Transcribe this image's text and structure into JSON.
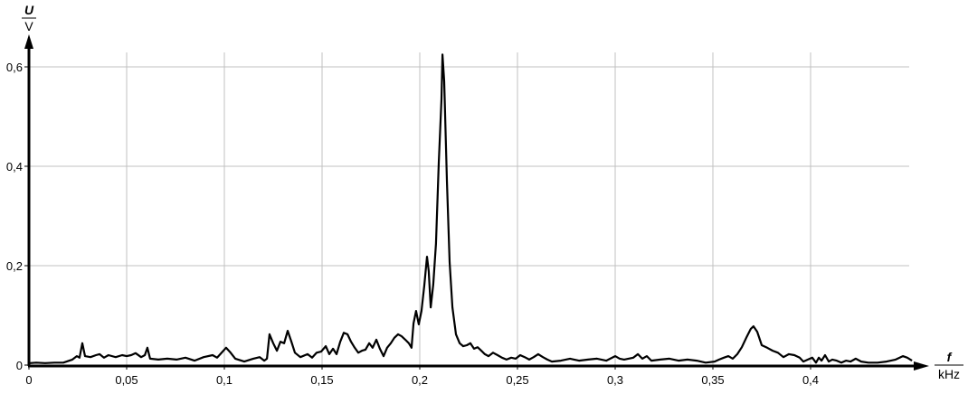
{
  "chart_data": {
    "type": "line",
    "title": "",
    "ylabel": {
      "symbol": "U",
      "unit": "V"
    },
    "xlabel": {
      "symbol": "f",
      "unit": "kHz"
    },
    "xlim": [
      0,
      0.45
    ],
    "ylim": [
      0,
      0.63
    ],
    "grid": true,
    "x_ticks": [
      0,
      0.05,
      0.1,
      0.15,
      0.2,
      0.25,
      0.3,
      0.35,
      0.4
    ],
    "x_tick_labels": [
      "0",
      "0,05",
      "0,1",
      "0,15",
      "0,2",
      "0,25",
      "0,3",
      "0,35",
      "0,4"
    ],
    "y_ticks": [
      0,
      0.2,
      0.4,
      0.6
    ],
    "y_tick_labels": [
      "0",
      "0,2",
      "0,4",
      "0,6"
    ],
    "colors": {
      "line": "#000000",
      "grid": "#c0c0c0",
      "axis": "#000000"
    },
    "series": [
      {
        "x": [
          0.0005,
          0.0037,
          0.0083,
          0.013,
          0.0176,
          0.0222,
          0.0245,
          0.0259,
          0.0273,
          0.0287,
          0.0315,
          0.0343,
          0.0361,
          0.0384,
          0.0407,
          0.0444,
          0.0477,
          0.05,
          0.0523,
          0.0546,
          0.0574,
          0.0593,
          0.0606,
          0.062,
          0.0662,
          0.0708,
          0.0755,
          0.0801,
          0.0847,
          0.0894,
          0.094,
          0.0963,
          0.0986,
          0.1009,
          0.1032,
          0.1056,
          0.1102,
          0.1148,
          0.1181,
          0.1204,
          0.1218,
          0.1231,
          0.125,
          0.1269,
          0.1287,
          0.1306,
          0.1324,
          0.1343,
          0.1361,
          0.1389,
          0.1426,
          0.1449,
          0.1472,
          0.1495,
          0.1519,
          0.1537,
          0.1556,
          0.1574,
          0.1593,
          0.1611,
          0.163,
          0.1648,
          0.1667,
          0.1685,
          0.1704,
          0.1722,
          0.1741,
          0.1759,
          0.1778,
          0.1796,
          0.1815,
          0.1833,
          0.1852,
          0.187,
          0.1889,
          0.1907,
          0.1926,
          0.1944,
          0.1958,
          0.1968,
          0.1981,
          0.1995,
          0.2009,
          0.2023,
          0.2037,
          0.2046,
          0.2056,
          0.2069,
          0.2083,
          0.2097,
          0.2111,
          0.2116,
          0.2125,
          0.2139,
          0.2153,
          0.2167,
          0.2185,
          0.2204,
          0.2222,
          0.2241,
          0.2259,
          0.2278,
          0.2296,
          0.2315,
          0.2333,
          0.2352,
          0.2375,
          0.2398,
          0.2421,
          0.2444,
          0.2468,
          0.2491,
          0.2514,
          0.2537,
          0.256,
          0.2583,
          0.2606,
          0.263,
          0.2653,
          0.2676,
          0.2722,
          0.2769,
          0.2815,
          0.2861,
          0.2907,
          0.2954,
          0.3,
          0.3023,
          0.3046,
          0.3093,
          0.3116,
          0.3139,
          0.3162,
          0.3185,
          0.3231,
          0.3278,
          0.3324,
          0.337,
          0.3417,
          0.3463,
          0.3509,
          0.3532,
          0.3556,
          0.3579,
          0.3602,
          0.3625,
          0.3648,
          0.3671,
          0.3694,
          0.3708,
          0.3727,
          0.375,
          0.3778,
          0.3806,
          0.3833,
          0.3861,
          0.3889,
          0.3917,
          0.3944,
          0.3963,
          0.3986,
          0.4009,
          0.4028,
          0.4042,
          0.4056,
          0.4074,
          0.4093,
          0.4111,
          0.4134,
          0.4157,
          0.4181,
          0.4204,
          0.4231,
          0.4259,
          0.4296,
          0.4343,
          0.4389,
          0.4435,
          0.4472,
          0.4495,
          0.4519
        ],
        "y": [
          0.004,
          0.005,
          0.004,
          0.005,
          0.005,
          0.011,
          0.018,
          0.015,
          0.044,
          0.018,
          0.016,
          0.02,
          0.022,
          0.015,
          0.02,
          0.016,
          0.02,
          0.018,
          0.02,
          0.024,
          0.016,
          0.02,
          0.035,
          0.013,
          0.011,
          0.013,
          0.011,
          0.015,
          0.009,
          0.016,
          0.02,
          0.015,
          0.025,
          0.035,
          0.025,
          0.013,
          0.007,
          0.013,
          0.016,
          0.009,
          0.013,
          0.062,
          0.044,
          0.029,
          0.047,
          0.044,
          0.069,
          0.047,
          0.025,
          0.016,
          0.022,
          0.015,
          0.025,
          0.027,
          0.038,
          0.022,
          0.033,
          0.022,
          0.047,
          0.065,
          0.062,
          0.047,
          0.035,
          0.025,
          0.029,
          0.031,
          0.044,
          0.035,
          0.051,
          0.033,
          0.018,
          0.035,
          0.044,
          0.055,
          0.062,
          0.058,
          0.051,
          0.044,
          0.035,
          0.084,
          0.109,
          0.082,
          0.109,
          0.16,
          0.218,
          0.189,
          0.116,
          0.162,
          0.244,
          0.407,
          0.535,
          0.625,
          0.571,
          0.371,
          0.207,
          0.116,
          0.062,
          0.044,
          0.038,
          0.04,
          0.044,
          0.033,
          0.036,
          0.029,
          0.022,
          0.018,
          0.025,
          0.02,
          0.015,
          0.011,
          0.015,
          0.013,
          0.02,
          0.016,
          0.011,
          0.016,
          0.022,
          0.016,
          0.011,
          0.007,
          0.009,
          0.013,
          0.009,
          0.011,
          0.013,
          0.009,
          0.018,
          0.013,
          0.011,
          0.015,
          0.022,
          0.013,
          0.018,
          0.009,
          0.011,
          0.013,
          0.009,
          0.011,
          0.009,
          0.005,
          0.007,
          0.011,
          0.015,
          0.018,
          0.013,
          0.022,
          0.036,
          0.055,
          0.073,
          0.078,
          0.067,
          0.04,
          0.035,
          0.029,
          0.025,
          0.016,
          0.022,
          0.02,
          0.015,
          0.007,
          0.011,
          0.015,
          0.005,
          0.015,
          0.009,
          0.02,
          0.007,
          0.011,
          0.009,
          0.005,
          0.009,
          0.007,
          0.013,
          0.007,
          0.005,
          0.005,
          0.007,
          0.011,
          0.018,
          0.015,
          0.009
        ]
      }
    ]
  }
}
